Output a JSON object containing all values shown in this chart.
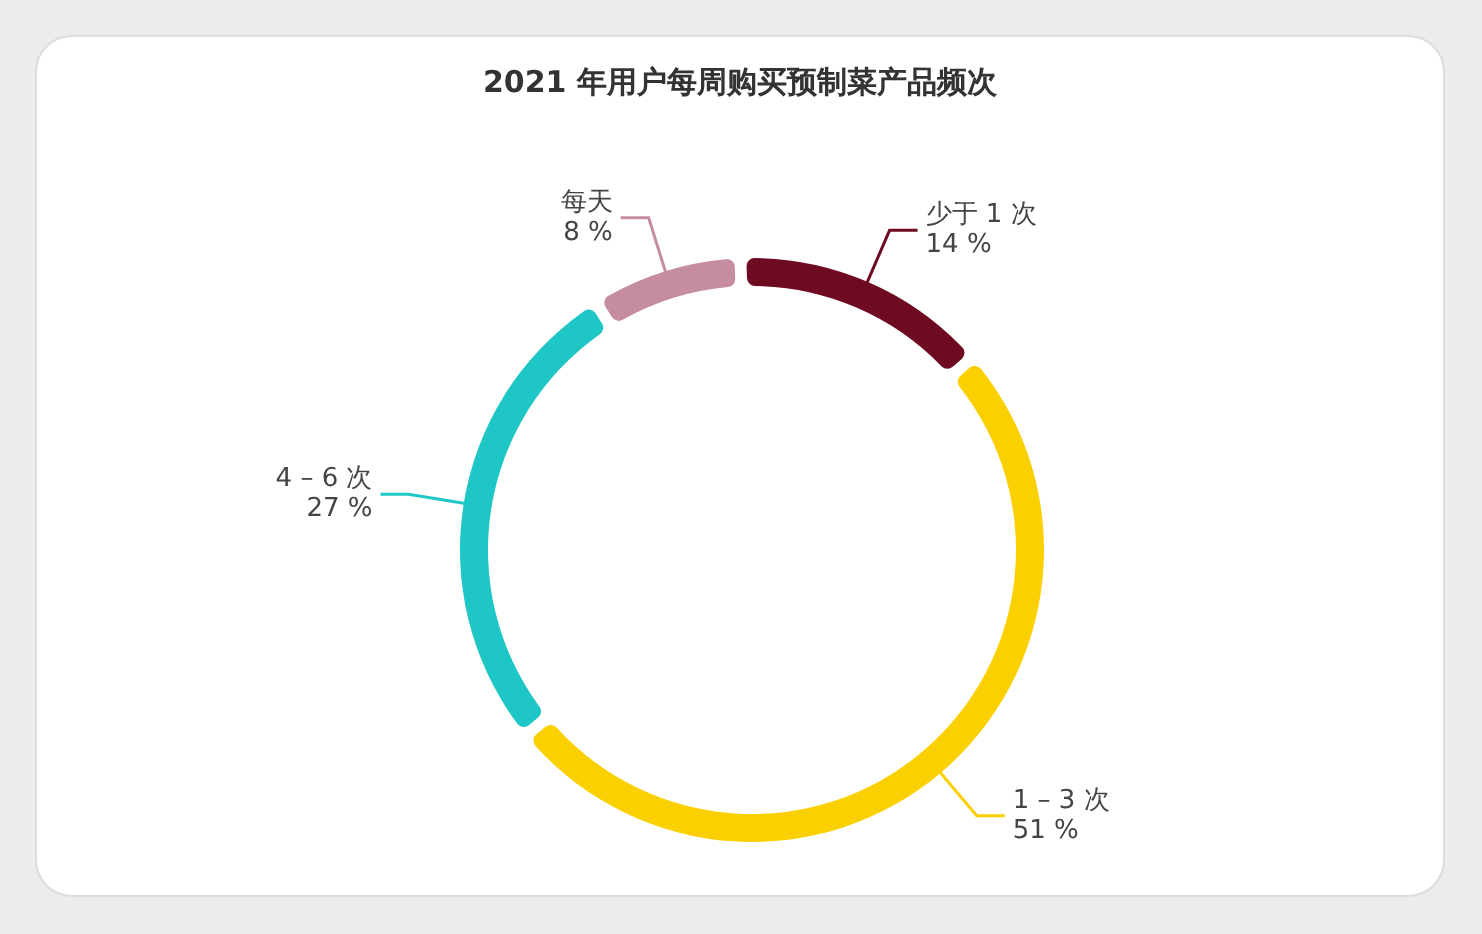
{
  "chart_data": {
    "type": "donut",
    "title": "2021 年用户每周购买预制菜产品频次",
    "categories": [
      "少于 1 次",
      "1 – 3 次",
      "4 – 6 次",
      "每天"
    ],
    "values": [
      14,
      51,
      27,
      8
    ],
    "colors": [
      "#6e0b22",
      "#fbd000",
      "#1ec6c6",
      "#c68da2"
    ],
    "value_labels": [
      "14 %",
      "51 %",
      "27 %",
      "8 %"
    ],
    "legend": false
  }
}
